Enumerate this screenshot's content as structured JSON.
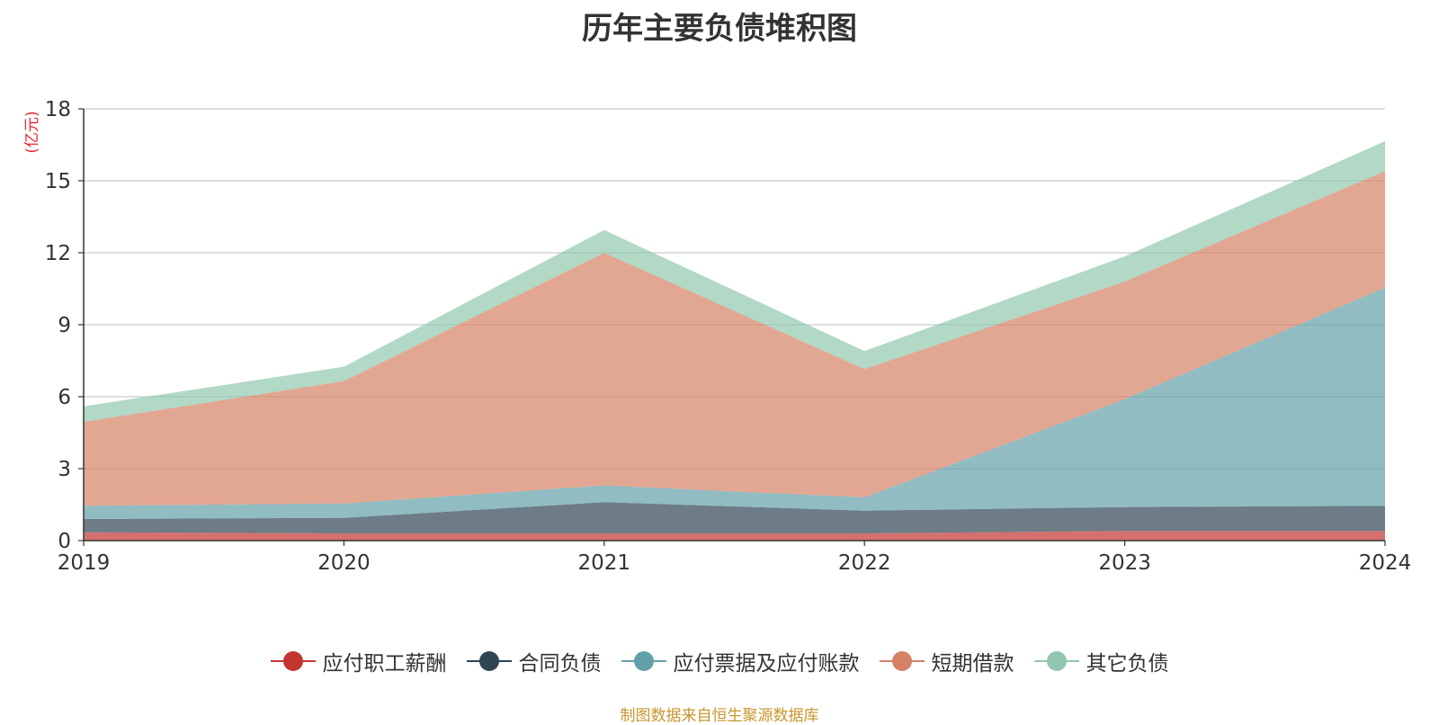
{
  "chart_data": {
    "type": "area",
    "stacked": true,
    "title": "历年主要负债堆积图",
    "ylabel": "(亿元)",
    "xlabel": "",
    "categories": [
      "2019",
      "2020",
      "2021",
      "2022",
      "2023",
      "2024"
    ],
    "ylim": [
      0,
      18
    ],
    "yticks": [
      0,
      3,
      6,
      9,
      12,
      15,
      18
    ],
    "grid": true,
    "legend_position": "bottom",
    "series": [
      {
        "name": "应付职工薪酬",
        "color": "#c23531",
        "values": [
          0.35,
          0.3,
          0.3,
          0.3,
          0.4,
          0.4
        ]
      },
      {
        "name": "合同负债",
        "color": "#2f4554",
        "values": [
          0.55,
          0.65,
          1.3,
          0.95,
          1.0,
          1.05
        ]
      },
      {
        "name": "应付票据及应付账款",
        "color": "#61a0a8",
        "values": [
          0.55,
          0.6,
          0.7,
          0.55,
          4.5,
          9.1
        ]
      },
      {
        "name": "短期借款",
        "color": "#d48265",
        "values": [
          3.5,
          5.1,
          9.7,
          5.35,
          4.9,
          4.85
        ]
      },
      {
        "name": "其它负债",
        "color": "#91c7ae",
        "values": [
          0.65,
          0.6,
          0.95,
          0.75,
          1.05,
          1.25
        ]
      }
    ]
  },
  "footer": {
    "source": "制图数据来自恒生聚源数据库"
  }
}
